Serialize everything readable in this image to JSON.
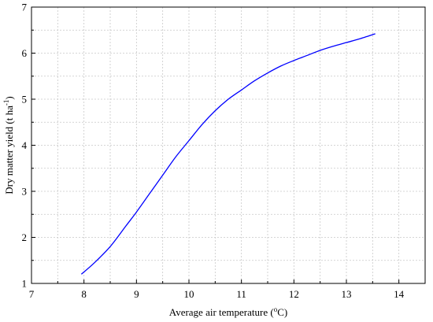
{
  "chart_data": {
    "type": "line",
    "title": "",
    "xlabel": "Average air temperature",
    "xlabel_unit_prefix": " (",
    "xlabel_unit_sup": "o",
    "xlabel_unit_suffix": "C)",
    "ylabel": "Dry matter yield (t ha",
    "ylabel_sup": "-1",
    "ylabel_suffix": ")",
    "xlim": [
      7,
      14.5
    ],
    "ylim": [
      1,
      7
    ],
    "x_ticks": [
      "7",
      "8",
      "9",
      "10",
      "11",
      "12",
      "13",
      "14"
    ],
    "y_ticks": [
      "1",
      "2",
      "3",
      "4",
      "5",
      "6",
      "7"
    ],
    "grid": true,
    "colors": {
      "series": "#0000ff",
      "grid": "#c8c8c8",
      "frame": "#000000"
    },
    "series": [
      {
        "x": [
          7.95,
          8.2,
          8.5,
          8.8,
          9.0,
          9.25,
          9.5,
          9.75,
          10.0,
          10.25,
          10.5,
          10.75,
          11.0,
          11.25,
          11.5,
          11.75,
          12.0,
          12.25,
          12.5,
          12.75,
          13.0,
          13.25,
          13.55
        ],
        "y": [
          1.2,
          1.45,
          1.8,
          2.25,
          2.55,
          2.95,
          3.35,
          3.75,
          4.1,
          4.45,
          4.75,
          5.0,
          5.2,
          5.4,
          5.57,
          5.72,
          5.84,
          5.95,
          6.06,
          6.15,
          6.23,
          6.31,
          6.42
        ]
      }
    ]
  }
}
